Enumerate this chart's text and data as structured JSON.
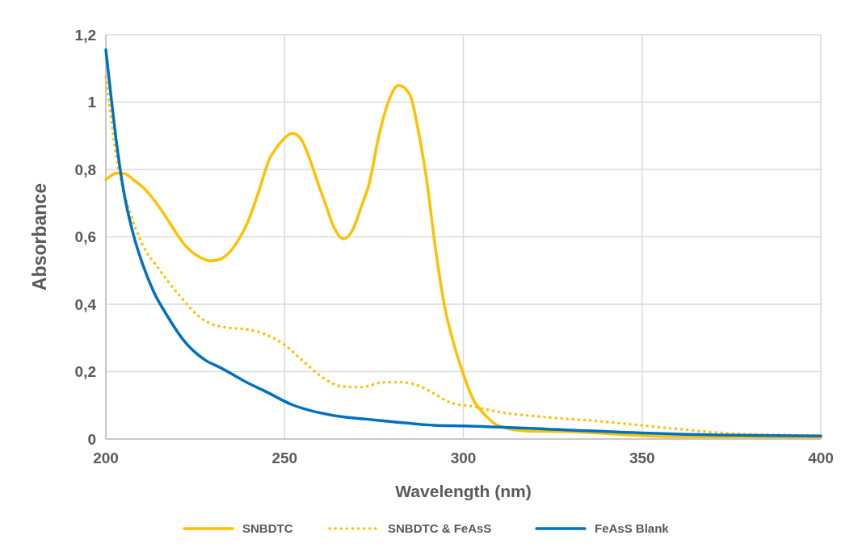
{
  "chart_data": {
    "type": "line",
    "xlabel": "Wavelength (nm)",
    "ylabel": "Absorbance",
    "xlim": [
      200,
      400
    ],
    "xticks": [
      200,
      250,
      300,
      350,
      400
    ],
    "ylim": [
      0,
      1.2
    ],
    "yticks": [
      0,
      {
        "value": 0.2,
        "label": "0,2"
      },
      {
        "value": 0.4,
        "label": "0,4"
      },
      {
        "value": 0.6,
        "label": "0,6"
      },
      {
        "value": 0.8,
        "label": "0,8"
      },
      1,
      {
        "value": 1.2,
        "label": "1,2"
      }
    ],
    "grid": true,
    "legend": "bottom",
    "marker": "none",
    "series": [
      {
        "name": "SNBDTC",
        "color": "#ffc000",
        "line_style": "solid",
        "x": [
          200,
          203.2,
          205.4,
          208,
          210.6,
          213.3,
          217,
          219.4,
          222.4,
          226.2,
          229.2,
          231.8,
          234.4,
          236.7,
          239.7,
          242.8,
          245.8,
          248,
          250.3,
          252.2,
          254.8,
          257,
          259.3,
          261.5,
          263.8,
          266.5,
          269.2,
          271.4,
          273.7,
          276.3,
          279,
          281.9,
          285,
          287.3,
          289.5,
          292.5,
          294.8,
          297,
          300,
          303.1,
          306.1,
          309.9,
          317.4,
          328.7,
          340,
          358.8,
          380,
          400
        ],
        "values": [
          0.77,
          0.789,
          0.787,
          0.767,
          0.745,
          0.712,
          0.656,
          0.616,
          0.572,
          0.54,
          0.529,
          0.533,
          0.552,
          0.584,
          0.644,
          0.736,
          0.832,
          0.868,
          0.896,
          0.907,
          0.887,
          0.832,
          0.76,
          0.696,
          0.628,
          0.594,
          0.624,
          0.688,
          0.76,
          0.896,
          1.0,
          1.05,
          1.023,
          0.92,
          0.786,
          0.543,
          0.391,
          0.295,
          0.192,
          0.111,
          0.071,
          0.039,
          0.024,
          0.022,
          0.016,
          0.007,
          0.006,
          0.005
        ]
      },
      {
        "name": "SNBDTC & FeAsS",
        "color": "#ffc000",
        "line_style": "dotted",
        "x": [
          200,
          201.3,
          202.8,
          205,
          207.3,
          210.3,
          214.9,
          220.1,
          227.7,
          233.7,
          239.8,
          244.3,
          249.5,
          254.8,
          260.1,
          266.1,
          271.4,
          277.5,
          282,
          288,
          291.8,
          296.4,
          303.1,
          308.4,
          321.2,
          340,
          358.8,
          377.7,
          396.6,
          400
        ],
        "values": [
          1.075,
          0.967,
          0.847,
          0.735,
          0.655,
          0.576,
          0.504,
          0.432,
          0.351,
          0.331,
          0.325,
          0.312,
          0.283,
          0.235,
          0.187,
          0.156,
          0.154,
          0.168,
          0.169,
          0.156,
          0.135,
          0.108,
          0.096,
          0.083,
          0.067,
          0.051,
          0.031,
          0.015,
          0.011,
          0.01
        ]
      },
      {
        "name": "FeAsS Blank",
        "color": "#0070c0",
        "line_style": "solid",
        "x": [
          200,
          201.3,
          202.8,
          205,
          207.7,
          210.3,
          213.3,
          217.1,
          221.6,
          227.7,
          232.2,
          238.2,
          245.8,
          251.8,
          257.8,
          265.4,
          272.9,
          280.5,
          291.8,
          300,
          328.7,
          358.8,
          400
        ],
        "values": [
          1.155,
          1.031,
          0.895,
          0.735,
          0.607,
          0.519,
          0.439,
          0.367,
          0.295,
          0.235,
          0.211,
          0.175,
          0.135,
          0.103,
          0.083,
          0.067,
          0.059,
          0.051,
          0.041,
          0.039,
          0.027,
          0.015,
          0.009
        ]
      }
    ]
  }
}
